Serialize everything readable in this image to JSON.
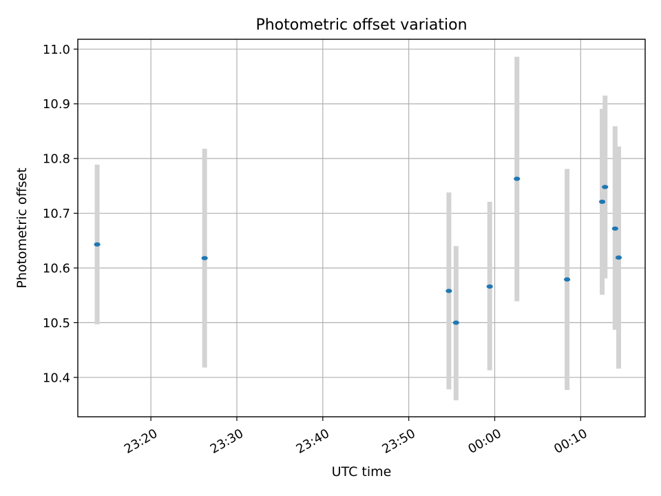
{
  "chart_data": {
    "type": "scatter",
    "title": "Photometric offset variation",
    "xlabel": "UTC time",
    "ylabel": "Photometric offset",
    "x_axis": {
      "kind": "time",
      "range": [
        "23:11:30",
        "00:17:30"
      ],
      "ticks": [
        "23:20",
        "23:30",
        "23:40",
        "23:50",
        "00:00",
        "00:10"
      ]
    },
    "ylim": [
      10.328,
      11.018
    ],
    "y_ticks": [
      "10.4",
      "10.5",
      "10.6",
      "10.7",
      "10.8",
      "10.9",
      "11.0"
    ],
    "grid": true,
    "colors": {
      "point": "#1f77b4",
      "errorbar": "#d3d3d3",
      "grid": "#b0b0b0"
    },
    "series": [
      {
        "points": [
          {
            "x": "23:13:45",
            "y": 10.643,
            "ylow": 10.497,
            "yhigh": 10.789
          },
          {
            "x": "23:26:15",
            "y": 10.618,
            "ylow": 10.418,
            "yhigh": 10.818
          },
          {
            "x": "23:54:40",
            "y": 10.558,
            "ylow": 10.378,
            "yhigh": 10.738
          },
          {
            "x": "23:55:30",
            "y": 10.5,
            "ylow": 10.358,
            "yhigh": 10.64
          },
          {
            "x": "23:59:25",
            "y": 10.566,
            "ylow": 10.413,
            "yhigh": 10.721
          },
          {
            "x": "00:02:35",
            "y": 10.763,
            "ylow": 10.539,
            "yhigh": 10.986
          },
          {
            "x": "00:08:25",
            "y": 10.579,
            "ylow": 10.377,
            "yhigh": 10.781
          },
          {
            "x": "00:12:30",
            "y": 10.721,
            "ylow": 10.551,
            "yhigh": 10.891
          },
          {
            "x": "00:12:50",
            "y": 10.748,
            "ylow": 10.581,
            "yhigh": 10.915
          },
          {
            "x": "00:14:00",
            "y": 10.672,
            "ylow": 10.487,
            "yhigh": 10.859
          },
          {
            "x": "00:14:25",
            "y": 10.619,
            "ylow": 10.416,
            "yhigh": 10.822
          }
        ]
      }
    ]
  }
}
